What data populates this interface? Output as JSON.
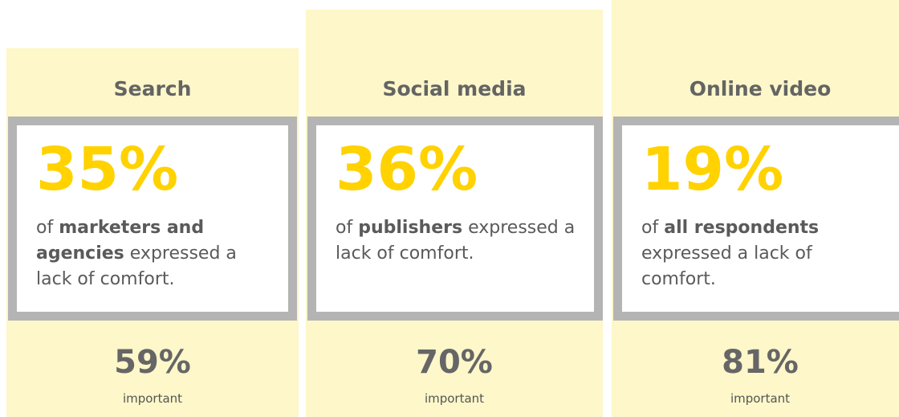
{
  "cards": [
    {
      "title": "Search",
      "big": "35%",
      "desc_pre": "of",
      "desc_bold": "marketers and agencies",
      "desc_post": "expressed a lack of comfort.",
      "stat": "59%",
      "stat_label": "important"
    },
    {
      "title": "Social media",
      "big": "36%",
      "desc_pre": "of",
      "desc_bold": "publishers",
      "desc_post": "expressed a lack of comfort.",
      "stat": "70%",
      "stat_label": "important"
    },
    {
      "title": "Online video",
      "big": "19%",
      "desc_pre": "of",
      "desc_bold": "all respondents",
      "desc_post": "expressed a lack of comfort.",
      "stat": "81%",
      "stat_label": "important"
    }
  ]
}
